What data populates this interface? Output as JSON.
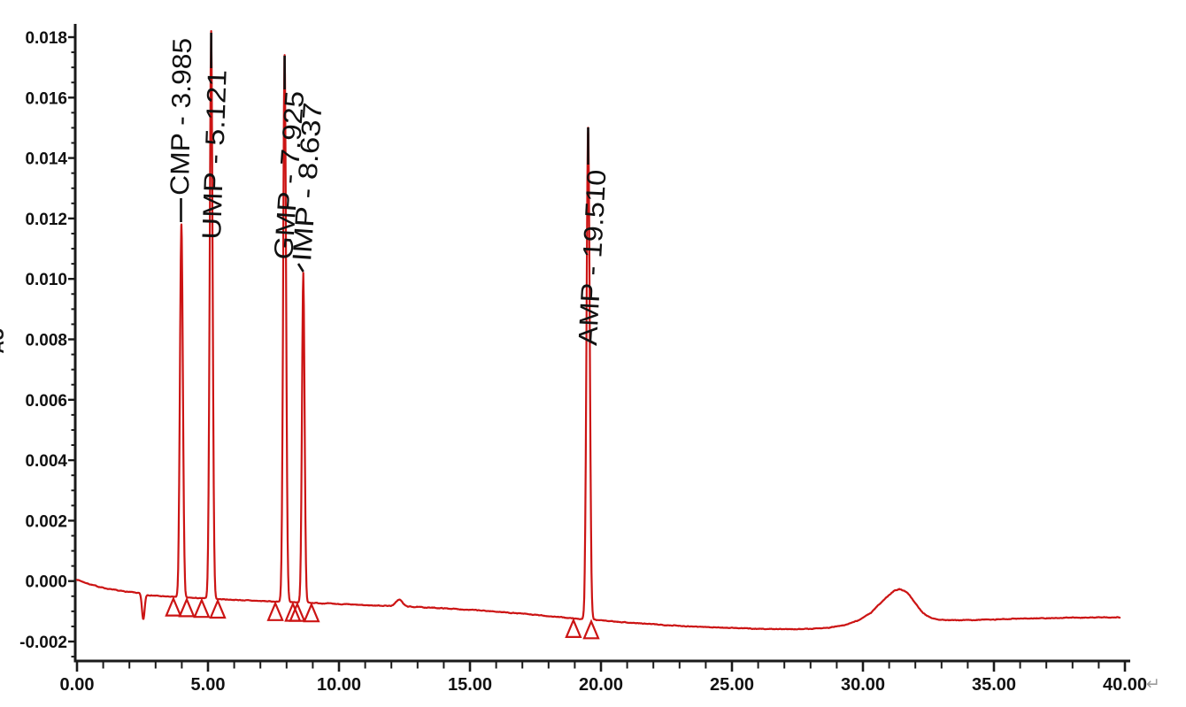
{
  "chart_data": {
    "type": "line",
    "subtype": "hplc-chromatogram",
    "title": "",
    "legend": "none",
    "grid": "off",
    "x_axis": {
      "label": "",
      "range_min": [
        0,
        40
      ],
      "major_tick_interval_min": 5,
      "minor_tick_interval_min": 1,
      "tick_labels": [
        "0.00",
        "5.00",
        "10.00",
        "15.00",
        "20.00",
        "25.00",
        "30.00",
        "35.00",
        "40.00"
      ],
      "end_mark": "↵",
      "end_mark_color": "#9a9a9a"
    },
    "y_axis": {
      "label": "AU",
      "range_au": [
        -0.0026,
        0.0185
      ],
      "major_tick_interval_au": 0.002,
      "minor_tick_interval_au": 0.0005,
      "tick_labels": [
        "0.018",
        "0.016",
        "0.014",
        "0.012",
        "0.010",
        "0.008",
        "0.006",
        "0.004",
        "0.002",
        "0.000",
        "-0.002"
      ]
    },
    "trace": {
      "color": "#cc1414",
      "start_time_min": 0,
      "end_time_min": 39.8,
      "start_value_au": 0.0
    },
    "peaks": [
      {
        "name": "CMP",
        "label": "CMP - 3.985",
        "retention_time_min": 3.985,
        "apex_au": 0.0118,
        "sigma_min": 0.055,
        "integration_marks_min": [
          3.68,
          4.19
        ]
      },
      {
        "name": "UMP",
        "label": "UMP - 5.121",
        "retention_time_min": 5.121,
        "apex_au": 0.0182,
        "sigma_min": 0.055,
        "integration_marks_min": [
          4.76,
          5.37
        ]
      },
      {
        "name": "GMP",
        "label": "GMP - 7.925",
        "retention_time_min": 7.925,
        "apex_au": 0.0174,
        "sigma_min": 0.055,
        "integration_marks_min": [
          7.57,
          8.24
        ]
      },
      {
        "name": "IMP",
        "label": "IMP - 8.637",
        "retention_time_min": 8.637,
        "apex_au": 0.0102,
        "sigma_min": 0.05,
        "integration_marks_min": [
          8.41,
          8.95
        ]
      },
      {
        "name": "AMP",
        "label": "AMP - 19.510",
        "retention_time_min": 19.51,
        "apex_au": 0.015,
        "sigma_min": 0.06,
        "integration_marks_min": [
          18.95,
          19.63
        ]
      }
    ],
    "unlabeled_features": [
      {
        "type": "negative_dip",
        "time_min": 2.53,
        "amplitude_au": -0.00085,
        "sigma_min": 0.05
      },
      {
        "type": "small_bump",
        "time_min": 12.3,
        "amplitude_au": 0.00022,
        "sigma_min": 0.12
      },
      {
        "type": "broad_hump",
        "time_min": 31.3,
        "apex_au": -0.00026
      }
    ],
    "baseline_au": [
      [
        0,
        5e-05
      ],
      [
        0.4,
        -8e-05
      ],
      [
        0.8,
        -0.00018
      ],
      [
        1.2,
        -0.00026
      ],
      [
        1.6,
        -0.00032
      ],
      [
        2.0,
        -0.00036
      ],
      [
        2.4,
        -0.0004
      ],
      [
        2.7,
        -0.00046
      ],
      [
        3.2,
        -0.0005
      ],
      [
        4.0,
        -0.00054
      ],
      [
        5.0,
        -0.00058
      ],
      [
        6.0,
        -0.00062
      ],
      [
        7.0,
        -0.00066
      ],
      [
        8.0,
        -0.00069
      ],
      [
        9.0,
        -0.00072
      ],
      [
        10.0,
        -0.00076
      ],
      [
        11.0,
        -0.0008
      ],
      [
        12.0,
        -0.00082
      ],
      [
        13.0,
        -0.00086
      ],
      [
        14.0,
        -0.0009
      ],
      [
        15.0,
        -0.00095
      ],
      [
        16.0,
        -0.00101
      ],
      [
        17.0,
        -0.00108
      ],
      [
        18.0,
        -0.00116
      ],
      [
        19.0,
        -0.00124
      ],
      [
        20.0,
        -0.0013
      ],
      [
        21.0,
        -0.00137
      ],
      [
        22.0,
        -0.00143
      ],
      [
        23.0,
        -0.00148
      ],
      [
        24.0,
        -0.00152
      ],
      [
        25.0,
        -0.00155
      ],
      [
        26.0,
        -0.00158
      ],
      [
        27.0,
        -0.00159
      ],
      [
        28.0,
        -0.00158
      ],
      [
        28.7,
        -0.00154
      ],
      [
        29.3,
        -0.00146
      ],
      [
        29.8,
        -0.00131
      ],
      [
        30.3,
        -0.00105
      ],
      [
        30.8,
        -0.00062
      ],
      [
        31.2,
        -0.00031
      ],
      [
        31.4,
        -0.00026
      ],
      [
        31.7,
        -0.00038
      ],
      [
        32.0,
        -0.00073
      ],
      [
        32.3,
        -0.00106
      ],
      [
        32.6,
        -0.00122
      ],
      [
        33.0,
        -0.00128
      ],
      [
        33.5,
        -0.0013
      ],
      [
        34.5,
        -0.00128
      ],
      [
        36.0,
        -0.00124
      ],
      [
        38.0,
        -0.00121
      ],
      [
        39.8,
        -0.0012
      ]
    ]
  }
}
